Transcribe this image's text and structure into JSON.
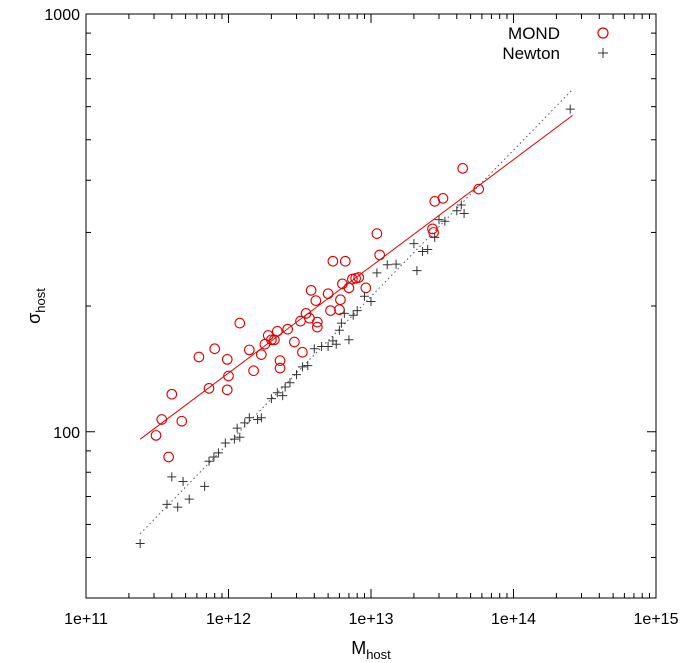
{
  "chart_data": {
    "type": "scatter",
    "title": "",
    "xlabel": "M",
    "xlabel_sub": "host",
    "ylabel": "σ",
    "ylabel_sub": "host",
    "x_scale": "log",
    "y_scale": "log",
    "xlim": [
      100000000000.0,
      1000000000000000.0
    ],
    "ylim": [
      40,
      1000
    ],
    "x_ticks": [
      {
        "value": 100000000000.0,
        "label": "1e+11"
      },
      {
        "value": 1000000000000.0,
        "label": "1e+12"
      },
      {
        "value": 10000000000000.0,
        "label": "1e+13"
      },
      {
        "value": 100000000000000.0,
        "label": "1e+14"
      },
      {
        "value": 1000000000000000.0,
        "label": "1e+15"
      }
    ],
    "y_ticks": [
      {
        "value": 100,
        "label": "100"
      },
      {
        "value": 1000,
        "label": "1000"
      }
    ],
    "grid": false,
    "legend_position": "top-right",
    "colors": {
      "mond": "#dd0000",
      "newton": "#333333"
    },
    "series": [
      {
        "name": "MOND",
        "marker": "circle",
        "color": "#dd0000",
        "points": [
          [
            310000000000.0,
            98
          ],
          [
            340000000000.0,
            107
          ],
          [
            380000000000.0,
            87
          ],
          [
            400000000000.0,
            123
          ],
          [
            470000000000.0,
            106
          ],
          [
            620000000000.0,
            151
          ],
          [
            730000000000.0,
            127
          ],
          [
            800000000000.0,
            158
          ],
          [
            980000000000.0,
            149
          ],
          [
            980000000000.0,
            126
          ],
          [
            1000000000000.0,
            136
          ],
          [
            1200000000000.0,
            182
          ],
          [
            1400000000000.0,
            157
          ],
          [
            1500000000000.0,
            140
          ],
          [
            1700000000000.0,
            153
          ],
          [
            1800000000000.0,
            162
          ],
          [
            1900000000000.0,
            170
          ],
          [
            2000000000000.0,
            166
          ],
          [
            2100000000000.0,
            166
          ],
          [
            2200000000000.0,
            174
          ],
          [
            2300000000000.0,
            142
          ],
          [
            2300000000000.0,
            148
          ],
          [
            2600000000000.0,
            176
          ],
          [
            2900000000000.0,
            164
          ],
          [
            3200000000000.0,
            184
          ],
          [
            3300000000000.0,
            155
          ],
          [
            3500000000000.0,
            192
          ],
          [
            3700000000000.0,
            187
          ],
          [
            3800000000000.0,
            218
          ],
          [
            4100000000000.0,
            206
          ],
          [
            4200000000000.0,
            178
          ],
          [
            4200000000000.0,
            183
          ],
          [
            5000000000000.0,
            214
          ],
          [
            5200000000000.0,
            195
          ],
          [
            5400000000000.0,
            256
          ],
          [
            6000000000000.0,
            196
          ],
          [
            6100000000000.0,
            207
          ],
          [
            6300000000000.0,
            226
          ],
          [
            6600000000000.0,
            256
          ],
          [
            7000000000000.0,
            221
          ],
          [
            7400000000000.0,
            232
          ],
          [
            7800000000000.0,
            233
          ],
          [
            8200000000000.0,
            234
          ],
          [
            9200000000000.0,
            221
          ],
          [
            11000000000000.0,
            298
          ],
          [
            11500000000000.0,
            265
          ],
          [
            27000000000000.0,
            306
          ],
          [
            27500000000000.0,
            300
          ],
          [
            28000000000000.0,
            356
          ],
          [
            32000000000000.0,
            362
          ],
          [
            44000000000000.0,
            427
          ],
          [
            57000000000000.0,
            381
          ]
        ]
      },
      {
        "name": "Newton",
        "marker": "plus",
        "color": "#333333",
        "points": [
          [
            240000000000.0,
            54
          ],
          [
            370000000000.0,
            67
          ],
          [
            400000000000.0,
            78
          ],
          [
            440000000000.0,
            66
          ],
          [
            480000000000.0,
            76
          ],
          [
            530000000000.0,
            69
          ],
          [
            680000000000.0,
            74
          ],
          [
            730000000000.0,
            85
          ],
          [
            790000000000.0,
            87
          ],
          [
            850000000000.0,
            89
          ],
          [
            950000000000.0,
            94
          ],
          [
            1100000000000.0,
            96
          ],
          [
            1150000000000.0,
            102
          ],
          [
            1200000000000.0,
            97
          ],
          [
            1300000000000.0,
            105
          ],
          [
            1400000000000.0,
            108
          ],
          [
            1600000000000.0,
            107
          ],
          [
            1700000000000.0,
            108
          ],
          [
            2000000000000.0,
            120
          ],
          [
            2200000000000.0,
            124
          ],
          [
            2400000000000.0,
            122
          ],
          [
            2500000000000.0,
            128
          ],
          [
            2700000000000.0,
            131
          ],
          [
            3000000000000.0,
            137
          ],
          [
            3300000000000.0,
            143
          ],
          [
            3600000000000.0,
            144
          ],
          [
            4000000000000.0,
            158
          ],
          [
            4500000000000.0,
            160
          ],
          [
            5000000000000.0,
            160
          ],
          [
            5400000000000.0,
            165
          ],
          [
            5700000000000.0,
            162
          ],
          [
            6000000000000.0,
            175
          ],
          [
            6200000000000.0,
            182
          ],
          [
            6500000000000.0,
            192
          ],
          [
            7000000000000.0,
            166
          ],
          [
            7500000000000.0,
            190
          ],
          [
            8000000000000.0,
            195
          ],
          [
            9000000000000.0,
            211
          ],
          [
            10000000000000.0,
            205
          ],
          [
            11000000000000.0,
            240
          ],
          [
            13000000000000.0,
            251
          ],
          [
            15000000000000.0,
            252
          ],
          [
            20000000000000.0,
            282
          ],
          [
            21000000000000.0,
            243
          ],
          [
            23000000000000.0,
            270
          ],
          [
            25000000000000.0,
            273
          ],
          [
            28000000000000.0,
            292
          ],
          [
            30000000000000.0,
            322
          ],
          [
            33000000000000.0,
            319
          ],
          [
            40000000000000.0,
            338
          ],
          [
            43000000000000.0,
            349
          ],
          [
            45000000000000.0,
            333
          ],
          [
            250000000000000.0,
            592
          ]
        ]
      }
    ],
    "fit_lines": [
      {
        "series": "MOND",
        "style": "solid",
        "color": "#dd0000",
        "from": [
          240000000000.0,
          96
        ],
        "to": [
          260000000000000.0,
          572
        ]
      },
      {
        "series": "Newton",
        "style": "dotted",
        "color": "#555555",
        "from": [
          240000000000.0,
          57
        ],
        "to": [
          260000000000000.0,
          660
        ]
      }
    ]
  }
}
